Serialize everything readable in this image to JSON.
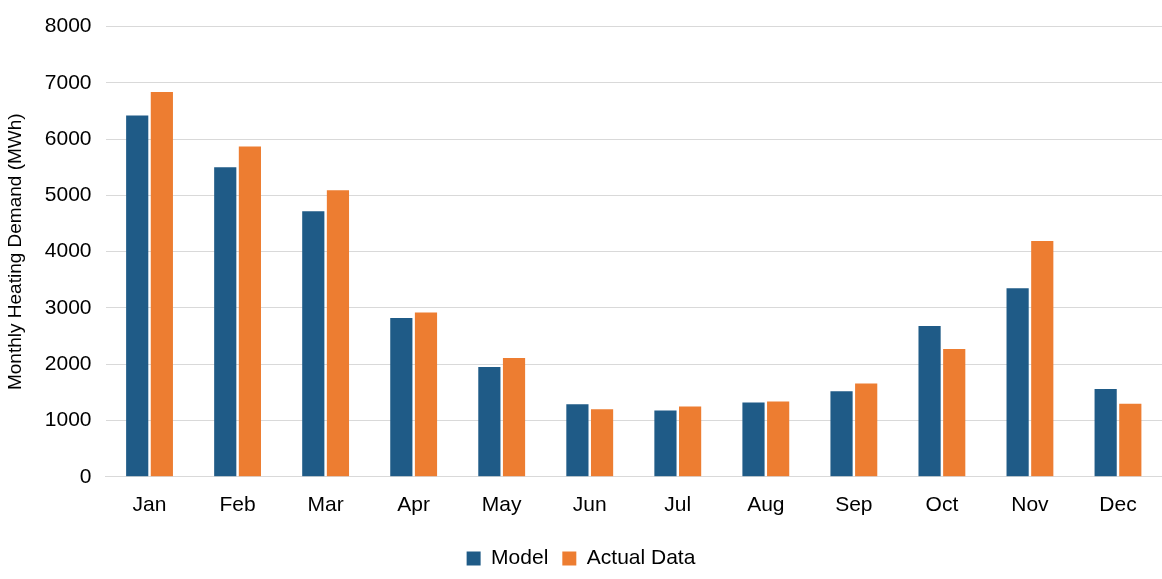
{
  "chart_data": {
    "type": "bar",
    "ylabel": "Monthly Heating Demand (MWh)",
    "categories": [
      "Jan",
      "Feb",
      "Mar",
      "Apr",
      "May",
      "Jun",
      "Jul",
      "Aug",
      "Sep",
      "Oct",
      "Nov",
      "Dec"
    ],
    "series": [
      {
        "name": "Model",
        "color": "#1f5b87",
        "values": [
          6420,
          5500,
          4720,
          2820,
          1950,
          1290,
          1180,
          1320,
          1520,
          2680,
          3350,
          1560
        ]
      },
      {
        "name": "Actual Data",
        "color": "#ed7d31",
        "values": [
          6840,
          5870,
          5090,
          2920,
          2110,
          1200,
          1250,
          1340,
          1660,
          2270,
          4190,
          1300
        ]
      }
    ],
    "ylim": [
      0,
      8000
    ],
    "yticks": [
      0,
      1000,
      2000,
      3000,
      4000,
      5000,
      6000,
      7000,
      8000
    ],
    "grid": "y",
    "legend": "bottom"
  }
}
